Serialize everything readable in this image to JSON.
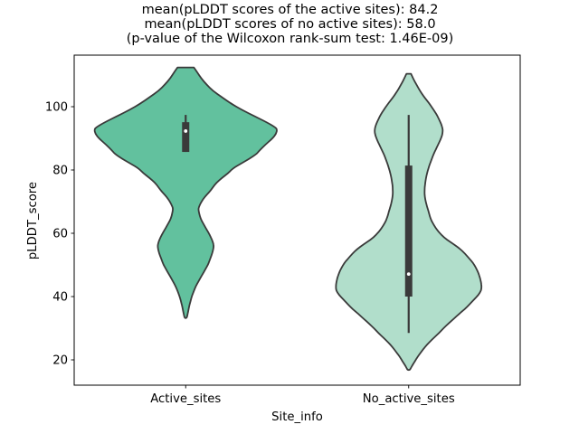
{
  "figure": {
    "title_lines": [
      "mean(pLDDT scores of the active sites): 84.2",
      "mean(pLDDT scores of no active sites): 58.0",
      "(p-value of the Wilcoxon rank-sum test: 1.46E-09)"
    ],
    "xlabel": "Site_info",
    "ylabel": "pLDDT_score"
  },
  "style": {
    "background": "#ffffff",
    "violin_edge": "#3a3a3a",
    "frame": "#000000",
    "text": "#000000",
    "median_dot": "#ffffff"
  },
  "chart_data": {
    "type": "violin",
    "title": "mean(pLDDT scores of the active sites): 84.2\nmean(pLDDT scores of no active sites): 58.0\n(p-value of the Wilcoxon rank-sum test: 1.46E-09)",
    "xlabel": "Site_info",
    "ylabel": "pLDDT_score",
    "categories": [
      "Active_sites",
      "No_active_sites"
    ],
    "yticks": [
      20,
      40,
      60,
      80,
      100
    ],
    "ylim": [
      11.7,
      116.3
    ],
    "grid": false,
    "legend": false,
    "stats": {
      "mean_active_sites": 84.2,
      "mean_no_active_sites": 58.0,
      "wilcoxon_rank_sum_p_value": "1.46E-09"
    },
    "series": [
      {
        "name": "Active_sites",
        "fill": "#62c19e",
        "mean": 84.2,
        "box": {
          "median": 92.3,
          "q1": 85.7,
          "q3": 95.1,
          "whisker_low": 85.7,
          "whisker_high": 97.4
        },
        "kde_range": [
          33.2,
          112.4
        ],
        "kde_peaks": [
          93,
          56
        ],
        "kde_profile": [
          [
            112.4,
            9
          ],
          [
            111,
            12.5
          ],
          [
            109,
            17
          ],
          [
            107,
            23
          ],
          [
            105,
            30
          ],
          [
            103,
            40
          ],
          [
            101,
            50
          ],
          [
            99,
            62
          ],
          [
            97,
            76
          ],
          [
            95,
            90
          ],
          [
            93.5,
            99
          ],
          [
            92.8,
            101
          ],
          [
            91.5,
            100
          ],
          [
            90,
            96
          ],
          [
            88,
            88
          ],
          [
            86,
            81
          ],
          [
            85,
            78
          ],
          [
            83.5,
            70
          ],
          [
            82,
            61
          ],
          [
            80.5,
            52
          ],
          [
            79,
            47
          ],
          [
            77.5,
            40
          ],
          [
            76,
            34
          ],
          [
            74.5,
            30
          ],
          [
            73,
            26
          ],
          [
            71.5,
            21
          ],
          [
            70,
            17.5
          ],
          [
            68.5,
            14.8
          ],
          [
            67.8,
            14.2
          ],
          [
            67,
            14.3
          ],
          [
            65.5,
            15.5
          ],
          [
            64,
            17.5
          ],
          [
            62.5,
            20.5
          ],
          [
            61,
            23.5
          ],
          [
            59.5,
            26.5
          ],
          [
            58,
            29
          ],
          [
            56.8,
            30.5
          ],
          [
            55.8,
            31
          ],
          [
            54.5,
            30.2
          ],
          [
            53,
            28.5
          ],
          [
            51.5,
            26.5
          ],
          [
            50,
            24.5
          ],
          [
            48.5,
            21.5
          ],
          [
            47,
            18.5
          ],
          [
            45.5,
            15.5
          ],
          [
            44,
            12.5
          ],
          [
            42.5,
            10
          ],
          [
            41,
            8
          ],
          [
            39.5,
            6.2
          ],
          [
            38,
            4.8
          ],
          [
            36.5,
            3.6
          ],
          [
            35,
            2.6
          ],
          [
            34,
            1.8
          ],
          [
            33.2,
            1
          ]
        ]
      },
      {
        "name": "No_active_sites",
        "fill": "#b1decb",
        "mean": 58.0,
        "box": {
          "median": 47.1,
          "q1": 40.0,
          "q3": 81.4,
          "whisker_low": 28.5,
          "whisker_high": 97.4
        },
        "kde_range": [
          16.8,
          110.4
        ],
        "kde_peaks": [
          92.3,
          43.2
        ],
        "kde_profile": [
          [
            110.4,
            2.5
          ],
          [
            109.5,
            4
          ],
          [
            108,
            6.5
          ],
          [
            106.5,
            9.5
          ],
          [
            105,
            12.5
          ],
          [
            103.5,
            16
          ],
          [
            102,
            20
          ],
          [
            100.5,
            24
          ],
          [
            99,
            27.5
          ],
          [
            97.5,
            31
          ],
          [
            96,
            33.5
          ],
          [
            94.5,
            36
          ],
          [
            93.2,
            37.4
          ],
          [
            92.3,
            37.6
          ],
          [
            91,
            37
          ],
          [
            89.5,
            35
          ],
          [
            88,
            32.5
          ],
          [
            86.5,
            30
          ],
          [
            85,
            27.5
          ],
          [
            83.5,
            25.5
          ],
          [
            82,
            23.5
          ],
          [
            80.5,
            21.8
          ],
          [
            79,
            20.3
          ],
          [
            77.5,
            19.2
          ],
          [
            76,
            18.3
          ],
          [
            74.5,
            17.7
          ],
          [
            73,
            17.5
          ],
          [
            71.5,
            17.8
          ],
          [
            70,
            18.8
          ],
          [
            68.5,
            20.2
          ],
          [
            67,
            21.8
          ],
          [
            65.5,
            23.2
          ],
          [
            64,
            25
          ],
          [
            62.5,
            28
          ],
          [
            61,
            31.5
          ],
          [
            59.5,
            36
          ],
          [
            58,
            42
          ],
          [
            56.5,
            50
          ],
          [
            55,
            57
          ],
          [
            53.5,
            62.5
          ],
          [
            52,
            67
          ],
          [
            50.5,
            71.5
          ],
          [
            49,
            74.5
          ],
          [
            47.5,
            77
          ],
          [
            46,
            78.8
          ],
          [
            44.5,
            80
          ],
          [
            43.2,
            80.5
          ],
          [
            42,
            80.3
          ],
          [
            40.5,
            77
          ],
          [
            39,
            72
          ],
          [
            37.5,
            67
          ],
          [
            36,
            62
          ],
          [
            34.5,
            55.5
          ],
          [
            33,
            50
          ],
          [
            31.5,
            44
          ],
          [
            30,
            38.5
          ],
          [
            28.5,
            33.5
          ],
          [
            27,
            28
          ],
          [
            25.5,
            22.5
          ],
          [
            24,
            17.8
          ],
          [
            22.5,
            13.8
          ],
          [
            21,
            10
          ],
          [
            19.5,
            6.8
          ],
          [
            18.5,
            4.5
          ],
          [
            17.5,
            2.5
          ],
          [
            16.8,
            1.2
          ]
        ]
      }
    ]
  }
}
